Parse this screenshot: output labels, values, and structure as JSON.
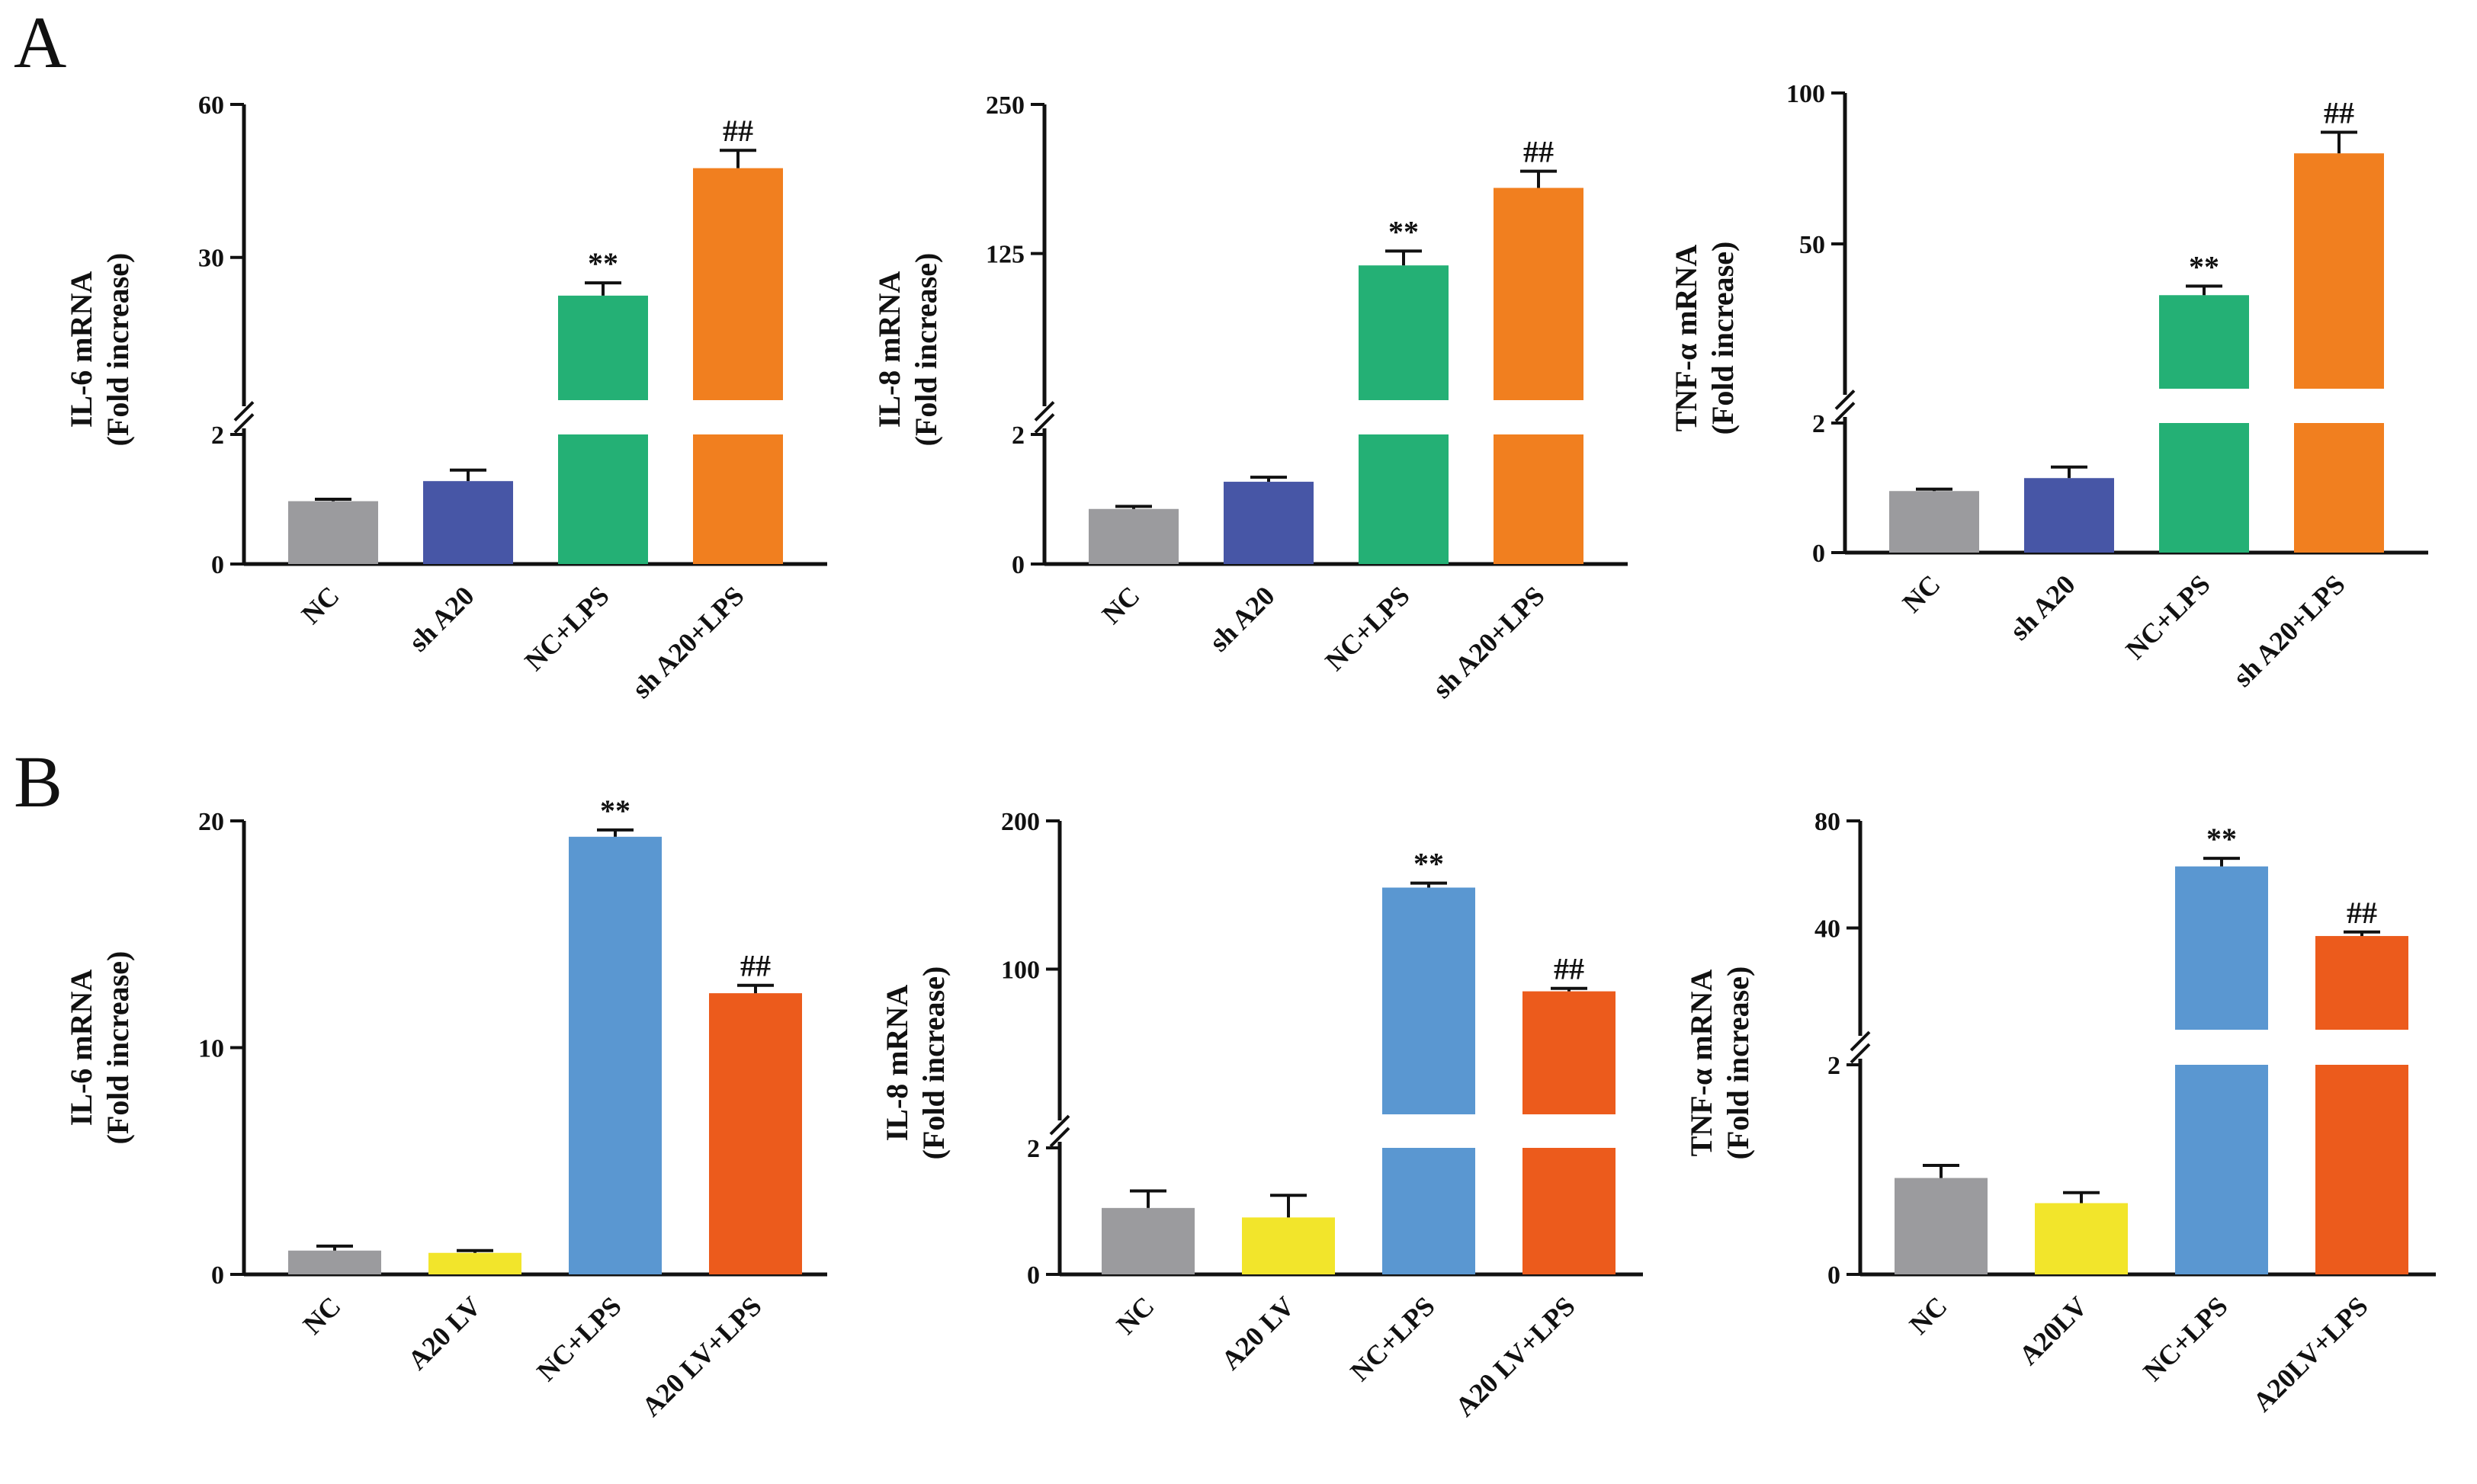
{
  "panel_labels": [
    "A",
    "B"
  ],
  "colors": {
    "NC": "#9b9b9e",
    "shA20": "#4756a6",
    "A20LV": "#f2e52b",
    "NC_LPS_A": "#24b075",
    "shA20_LPS": "#f17f1f",
    "NC_LPS_B": "#5a97d1",
    "A20LV_LPS": "#ec5b1c",
    "axis": "#111111"
  },
  "chart_data": [
    {
      "type": "bar",
      "panel": "A",
      "ylabel_line1": "IL-6 mRNA",
      "ylabel_line2": "(Fold increase)",
      "categories": [
        "NC",
        "sh A20",
        "NC+LPS",
        "sh A20+LPS"
      ],
      "values": [
        0.97,
        1.28,
        22.5,
        47.5
      ],
      "errors": [
        0.03,
        0.17,
        2.5,
        3.5
      ],
      "significance": [
        "",
        "",
        "**",
        "##"
      ],
      "broken_axis": true,
      "lower_range": [
        0,
        2
      ],
      "upper_range": [
        2,
        60
      ],
      "lower_ticks": [
        0,
        2
      ],
      "upper_ticks": [
        30,
        60
      ],
      "color_keys": [
        "NC",
        "shA20",
        "NC_LPS_A",
        "shA20_LPS"
      ]
    },
    {
      "type": "bar",
      "panel": "A",
      "ylabel_line1": "IL-8 mRNA",
      "ylabel_line2": "(Fold increase)",
      "categories": [
        "NC",
        "sh A20",
        "NC+LPS",
        "sh A20+LPS"
      ],
      "values": [
        0.85,
        1.27,
        115,
        180
      ],
      "errors": [
        0.04,
        0.07,
        12,
        14
      ],
      "significance": [
        "",
        "",
        "**",
        "##"
      ],
      "broken_axis": true,
      "lower_range": [
        0,
        2
      ],
      "upper_range": [
        2,
        250
      ],
      "lower_ticks": [
        0,
        2
      ],
      "upper_ticks": [
        125,
        250
      ],
      "color_keys": [
        "NC",
        "shA20",
        "NC_LPS_A",
        "shA20_LPS"
      ]
    },
    {
      "type": "bar",
      "panel": "A",
      "ylabel_line1": "TNF-α mRNA",
      "ylabel_line2": "(Fold increase)",
      "categories": [
        "NC",
        "sh A20",
        "NC+LPS",
        "sh A20+LPS"
      ],
      "values": [
        0.95,
        1.15,
        33,
        80
      ],
      "errors": [
        0.03,
        0.17,
        3,
        7
      ],
      "significance": [
        "",
        "",
        "**",
        "##"
      ],
      "broken_axis": true,
      "lower_range": [
        0,
        2
      ],
      "upper_range": [
        2,
        100
      ],
      "lower_ticks": [
        0,
        2
      ],
      "upper_ticks": [
        50,
        100
      ],
      "color_keys": [
        "NC",
        "shA20",
        "NC_LPS_A",
        "shA20_LPS"
      ]
    },
    {
      "type": "bar",
      "panel": "B",
      "ylabel_line1": "IL-6 mRNA",
      "ylabel_line2": "(Fold increase)",
      "categories": [
        "NC",
        "A20 LV",
        "NC+LPS",
        "A20 LV+LPS"
      ],
      "values": [
        1.05,
        0.95,
        19.3,
        12.4
      ],
      "errors": [
        0.2,
        0.1,
        0.3,
        0.35
      ],
      "significance": [
        "",
        "",
        "**",
        "##"
      ],
      "broken_axis": false,
      "ylim": [
        0,
        20
      ],
      "ticks": [
        0,
        10,
        20
      ],
      "color_keys": [
        "NC",
        "A20LV",
        "NC_LPS_B",
        "A20LV_LPS"
      ]
    },
    {
      "type": "bar",
      "panel": "B",
      "ylabel_line1": "IL-8 mRNA",
      "ylabel_line2": "(Fold increase)",
      "categories": [
        "NC",
        "A20 LV",
        "NC+LPS",
        "A20 LV+LPS"
      ],
      "values": [
        1.05,
        0.9,
        155,
        85
      ],
      "errors": [
        0.27,
        0.35,
        3,
        2
      ],
      "significance": [
        "",
        "",
        "**",
        "##"
      ],
      "broken_axis": true,
      "lower_range": [
        0,
        2
      ],
      "upper_range": [
        2,
        200
      ],
      "lower_ticks": [
        0,
        2
      ],
      "upper_ticks": [
        100,
        200
      ],
      "color_keys": [
        "NC",
        "A20LV",
        "NC_LPS_B",
        "A20LV_LPS"
      ]
    },
    {
      "type": "bar",
      "panel": "B",
      "ylabel_line1": "TNF-α mRNA",
      "ylabel_line2": "(Fold increase)",
      "categories": [
        "NC",
        "A20LV",
        "NC+LPS",
        "A20LV+LPS"
      ],
      "values": [
        0.92,
        0.68,
        63,
        37
      ],
      "errors": [
        0.12,
        0.1,
        3,
        1.5
      ],
      "significance": [
        "",
        "",
        "**",
        "##"
      ],
      "broken_axis": true,
      "lower_range": [
        0,
        2
      ],
      "upper_range": [
        2,
        80
      ],
      "lower_ticks": [
        0,
        2
      ],
      "upper_ticks": [
        40,
        80
      ],
      "color_keys": [
        "NC",
        "A20LV",
        "NC_LPS_B",
        "A20LV_LPS"
      ]
    }
  ]
}
